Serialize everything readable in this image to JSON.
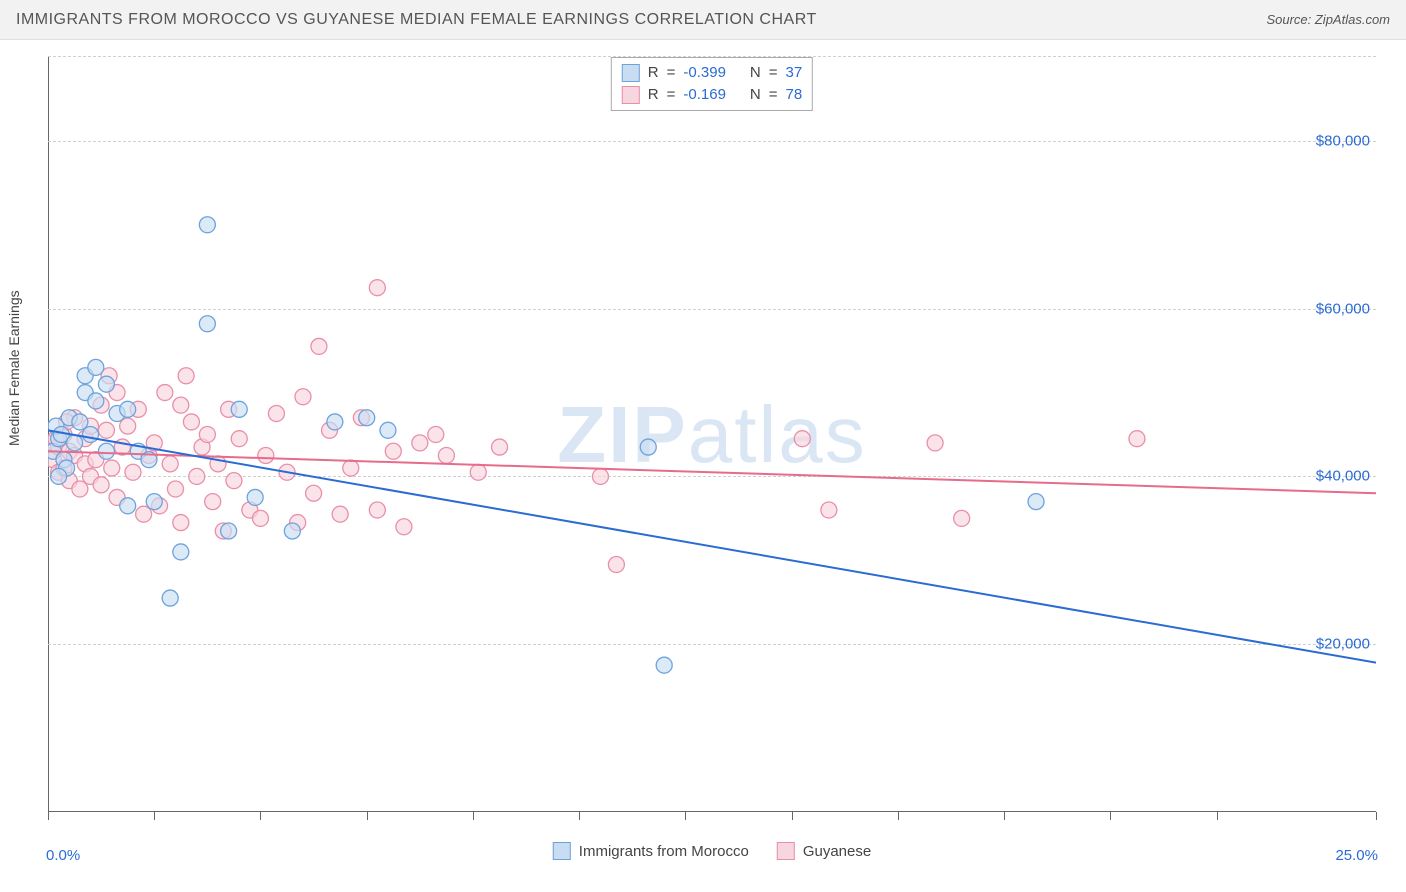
{
  "title": "IMMIGRANTS FROM MOROCCO VS GUYANESE MEDIAN FEMALE EARNINGS CORRELATION CHART",
  "source_label": "Source: ZipAtlas.com",
  "y_axis_title": "Median Female Earnings",
  "watermark_bold": "ZIP",
  "watermark_rest": "atlas",
  "chart": {
    "type": "scatter",
    "background_color": "#ffffff",
    "grid_color": "#d0d0d0",
    "axis_color": "#666666",
    "axis_label_color": "#2a6bd4",
    "text_color": "#444444",
    "xlim": [
      0,
      25
    ],
    "ylim": [
      0,
      90000
    ],
    "y_gridlines": [
      20000,
      40000,
      60000,
      80000
    ],
    "y_tick_labels": [
      "$20,000",
      "$40,000",
      "$60,000",
      "$80,000"
    ],
    "x_tick_positions": [
      0,
      2.0,
      4.0,
      6.0,
      8.0,
      10.0,
      12.0,
      14.0,
      16.0,
      18.0,
      20.0,
      22.0,
      25.0
    ],
    "x_min_label": "0.0%",
    "x_max_label": "25.0%",
    "marker_radius": 8,
    "marker_stroke_width": 1.3,
    "line_width": 2,
    "series": [
      {
        "name": "Immigrants from Morocco",
        "fill": "#c9ddf2",
        "stroke": "#6da3dd",
        "line_color": "#2a6bd4",
        "R": "-0.399",
        "N": "37",
        "regression": {
          "x1": 0,
          "y1": 45500,
          "x2": 25,
          "y2": 17800
        },
        "points": [
          [
            0.1,
            43000
          ],
          [
            0.2,
            44500
          ],
          [
            0.15,
            46000
          ],
          [
            0.3,
            42000
          ],
          [
            0.25,
            45000
          ],
          [
            0.4,
            47000
          ],
          [
            0.35,
            41000
          ],
          [
            0.2,
            40000
          ],
          [
            0.7,
            52000
          ],
          [
            0.7,
            50000
          ],
          [
            0.9,
            53000
          ],
          [
            0.9,
            49000
          ],
          [
            1.1,
            51000
          ],
          [
            1.1,
            43000
          ],
          [
            1.3,
            47500
          ],
          [
            1.5,
            48000
          ],
          [
            1.5,
            36500
          ],
          [
            1.7,
            43000
          ],
          [
            1.9,
            42000
          ],
          [
            2.0,
            37000
          ],
          [
            2.3,
            25500
          ],
          [
            2.5,
            31000
          ],
          [
            3.0,
            70000
          ],
          [
            3.0,
            58200
          ],
          [
            3.4,
            33500
          ],
          [
            3.6,
            48000
          ],
          [
            3.9,
            37500
          ],
          [
            4.6,
            33500
          ],
          [
            5.4,
            46500
          ],
          [
            6.0,
            47000
          ],
          [
            6.4,
            45500
          ],
          [
            11.6,
            17500
          ],
          [
            11.3,
            43500
          ],
          [
            18.6,
            37000
          ],
          [
            0.5,
            44000
          ],
          [
            0.6,
            46500
          ],
          [
            0.8,
            45000
          ]
        ]
      },
      {
        "name": "Guyanese",
        "fill": "#f7d6df",
        "stroke": "#e98fa9",
        "line_color": "#e76b8b",
        "R": "-0.169",
        "N": "78",
        "regression": {
          "x1": 0,
          "y1": 43000,
          "x2": 25,
          "y2": 38000
        },
        "points": [
          [
            0.1,
            42000
          ],
          [
            0.1,
            44000
          ],
          [
            0.2,
            40500
          ],
          [
            0.2,
            43500
          ],
          [
            0.3,
            41000
          ],
          [
            0.3,
            45000
          ],
          [
            0.4,
            39500
          ],
          [
            0.4,
            43000
          ],
          [
            0.5,
            42500
          ],
          [
            0.5,
            47000
          ],
          [
            0.6,
            38500
          ],
          [
            0.7,
            41500
          ],
          [
            0.7,
            44500
          ],
          [
            0.8,
            40000
          ],
          [
            0.8,
            46000
          ],
          [
            0.9,
            42000
          ],
          [
            1.0,
            39000
          ],
          [
            1.0,
            48500
          ],
          [
            1.1,
            45500
          ],
          [
            1.2,
            41000
          ],
          [
            1.3,
            50000
          ],
          [
            1.3,
            37500
          ],
          [
            1.4,
            43500
          ],
          [
            1.5,
            46000
          ],
          [
            1.6,
            40500
          ],
          [
            1.7,
            48000
          ],
          [
            1.8,
            35500
          ],
          [
            1.9,
            42500
          ],
          [
            2.0,
            44000
          ],
          [
            2.1,
            36500
          ],
          [
            2.2,
            50000
          ],
          [
            2.3,
            41500
          ],
          [
            2.4,
            38500
          ],
          [
            2.5,
            48500
          ],
          [
            2.5,
            34500
          ],
          [
            2.7,
            46500
          ],
          [
            2.8,
            40000
          ],
          [
            2.9,
            43500
          ],
          [
            3.0,
            45000
          ],
          [
            3.1,
            37000
          ],
          [
            3.2,
            41500
          ],
          [
            3.4,
            48000
          ],
          [
            3.5,
            39500
          ],
          [
            3.6,
            44500
          ],
          [
            3.8,
            36000
          ],
          [
            4.0,
            35000
          ],
          [
            4.1,
            42500
          ],
          [
            4.3,
            47500
          ],
          [
            4.5,
            40500
          ],
          [
            4.7,
            34500
          ],
          [
            4.8,
            49500
          ],
          [
            5.0,
            38000
          ],
          [
            5.1,
            55500
          ],
          [
            5.3,
            45500
          ],
          [
            5.5,
            35500
          ],
          [
            5.7,
            41000
          ],
          [
            5.9,
            47000
          ],
          [
            6.2,
            62500
          ],
          [
            6.2,
            36000
          ],
          [
            6.5,
            43000
          ],
          [
            6.7,
            34000
          ],
          [
            7.0,
            44000
          ],
          [
            7.3,
            45000
          ],
          [
            7.5,
            42500
          ],
          [
            8.1,
            40500
          ],
          [
            8.5,
            43500
          ],
          [
            10.4,
            40000
          ],
          [
            10.7,
            29500
          ],
          [
            14.2,
            44500
          ],
          [
            14.7,
            36000
          ],
          [
            16.7,
            44000
          ],
          [
            17.2,
            35000
          ],
          [
            20.5,
            44500
          ],
          [
            0.15,
            44500
          ],
          [
            0.35,
            46500
          ],
          [
            1.15,
            52000
          ],
          [
            2.6,
            52000
          ],
          [
            3.3,
            33500
          ]
        ]
      }
    ]
  },
  "legend_top_labels": {
    "R": "R",
    "N": "N",
    "eq": "="
  },
  "legend_bottom": [
    {
      "label": "Immigrants from Morocco",
      "series_idx": 0
    },
    {
      "label": "Guyanese",
      "series_idx": 1
    }
  ]
}
